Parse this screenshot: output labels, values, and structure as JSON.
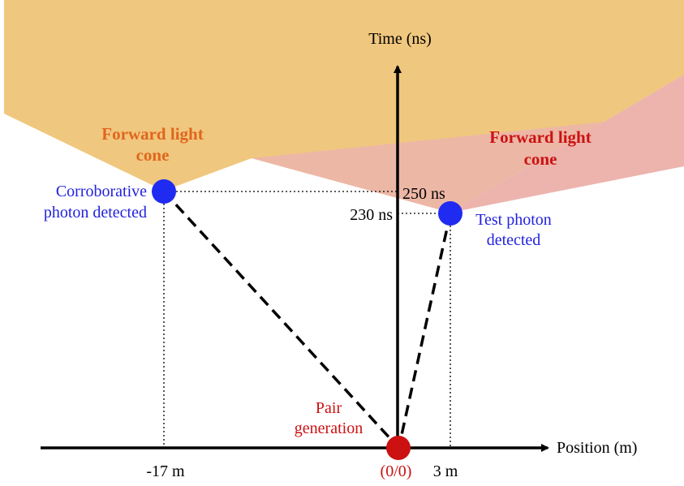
{
  "axes": {
    "y_label": "Time (ns)",
    "x_label": "Position (m)"
  },
  "cones": {
    "left": {
      "line1": "Forward light",
      "line2": "cone"
    },
    "right": {
      "line1": "Forward light",
      "line2": "cone"
    }
  },
  "points": {
    "corroborative": {
      "line1": "Corroborative",
      "line2": "photon detected"
    },
    "test": {
      "line1": "Test photon",
      "line2": "detected"
    },
    "origin": {
      "line1": "Pair",
      "line2": "generation",
      "coord": "(0/0)"
    }
  },
  "ticks": {
    "t250": "250 ns",
    "t230": "230 ns",
    "xneg17": "-17 m",
    "x3": "3 m"
  },
  "colors": {
    "cone_orange": "#f0c77e",
    "cone_yellow": "#f7f3a0",
    "cone_pink": "#ecb4ad",
    "event_blue": "#1f2bf0",
    "origin_red": "#cc1111",
    "label_orange": "#e0661e",
    "label_red": "#cc1111",
    "label_blue": "#2222dd"
  }
}
